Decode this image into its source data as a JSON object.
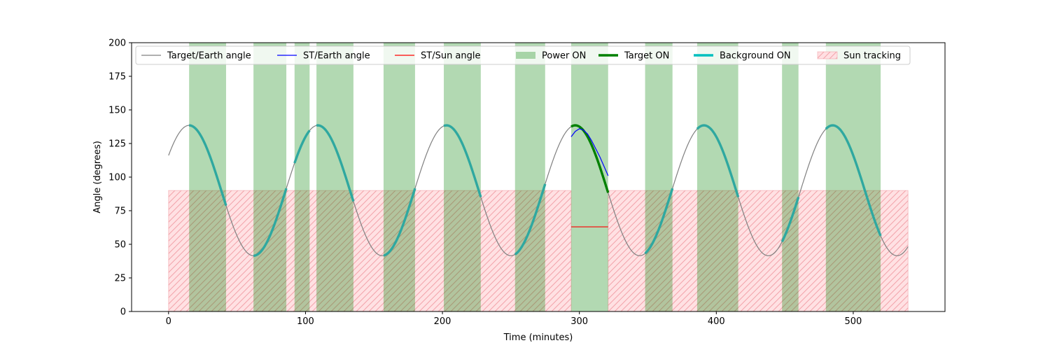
{
  "chart_data": {
    "type": "line",
    "xlabel": "Time (minutes)",
    "ylabel": "Angle (degrees)",
    "xlim": [
      -27,
      567
    ],
    "ylim": [
      0,
      200
    ],
    "x_ticks": [
      0,
      100,
      200,
      300,
      400,
      500
    ],
    "y_ticks": [
      0,
      25,
      50,
      75,
      100,
      125,
      150,
      175,
      200
    ],
    "grid": false,
    "legend_position": "top, spanning width",
    "colors": {
      "target_earth": "#808080",
      "st_earth": "#0000ff",
      "st_sun": "#ff0000",
      "power_on": "#b3d9b3",
      "target_on": "#008000",
      "background_on": "#00bfbf",
      "background_on_drawn": "#2fa8a0",
      "sun_tracking_fill": "#ffdfe2",
      "sun_tracking_hatch": "#f2a3aa"
    },
    "legend": [
      {
        "label": "Target/Earth angle",
        "kind": "line-thin",
        "color": "#808080"
      },
      {
        "label": "ST/Earth angle",
        "kind": "line-thin",
        "color": "#0000ff"
      },
      {
        "label": "ST/Sun angle",
        "kind": "line-thin",
        "color": "#ff0000"
      },
      {
        "label": "Power ON",
        "kind": "patch",
        "color": "#b3d9b3"
      },
      {
        "label": "Target ON",
        "kind": "line-thick",
        "color": "#008000"
      },
      {
        "label": "Background ON",
        "kind": "line-thick",
        "color": "#00bfbf"
      },
      {
        "label": "Sun tracking",
        "kind": "hatch",
        "color": "#ffdfe2"
      }
    ],
    "target_earth_angle": {
      "mean": 90,
      "amplitude": 48.5,
      "period_minutes": 94,
      "peak_at_minutes": 15,
      "x_range": [
        0,
        540
      ]
    },
    "power_on_intervals": [
      [
        15,
        42
      ],
      [
        62,
        86
      ],
      [
        92,
        103
      ],
      [
        108,
        135
      ],
      [
        157,
        180
      ],
      [
        201,
        228
      ],
      [
        253,
        275
      ],
      [
        294,
        321
      ],
      [
        348,
        368
      ],
      [
        386,
        416
      ],
      [
        448,
        460
      ],
      [
        480,
        520
      ]
    ],
    "background_on_intervals": [
      [
        15,
        42
      ],
      [
        62,
        86
      ],
      [
        92,
        103
      ],
      [
        108,
        135
      ],
      [
        157,
        180
      ],
      [
        201,
        228
      ],
      [
        253,
        275
      ],
      [
        348,
        368
      ],
      [
        386,
        416
      ],
      [
        448,
        460
      ],
      [
        480,
        520
      ]
    ],
    "target_on_intervals": [
      [
        294,
        321
      ]
    ],
    "sun_tracking": {
      "angle": 90,
      "intervals": [
        [
          0,
          294
        ],
        [
          321,
          540
        ]
      ]
    },
    "st_earth_angle": {
      "x": [
        294,
        297,
        300,
        303,
        306,
        309,
        312,
        315,
        318,
        321
      ],
      "y": [
        130,
        134,
        136,
        135,
        132,
        127,
        121,
        115,
        108,
        101
      ]
    },
    "st_sun_angle": {
      "x": [
        294,
        321
      ],
      "y": [
        63,
        63
      ]
    }
  }
}
